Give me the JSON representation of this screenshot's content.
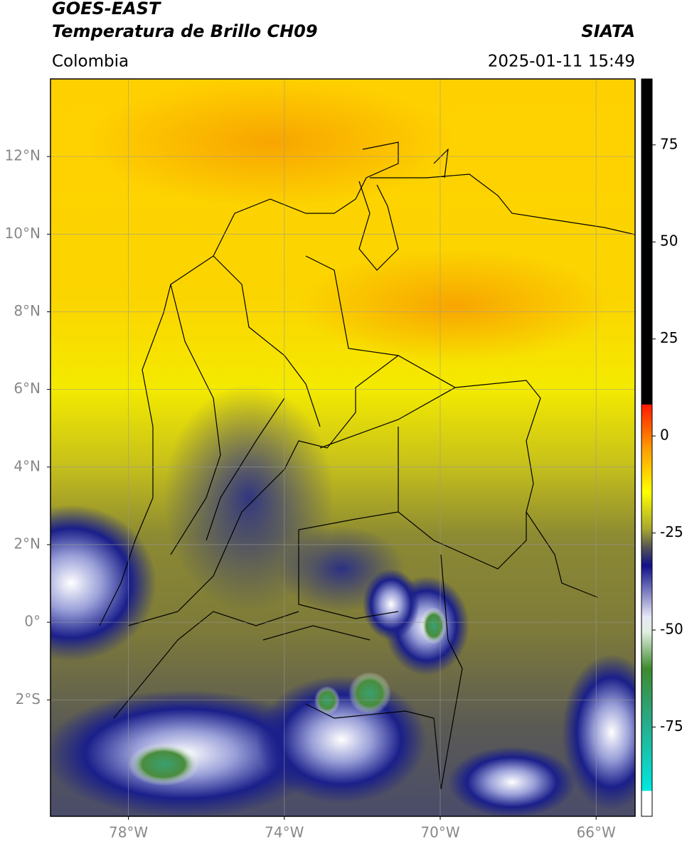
{
  "header": {
    "title": "GOES-EAST",
    "subtitle": "Temperatura de Brillo CH09",
    "source": "SIATA",
    "region": "Colombia",
    "datetime": "2025-01-11 15:49"
  },
  "map": {
    "lonlim": [
      -80,
      -65
    ],
    "latlim": [
      -5,
      14
    ],
    "lonticks": [
      {
        "value": -78,
        "label": "78°W"
      },
      {
        "value": -74,
        "label": "74°W"
      },
      {
        "value": -70,
        "label": "70°W"
      },
      {
        "value": -66,
        "label": "66°W"
      }
    ],
    "latticks": [
      {
        "value": 12,
        "label": "12°N"
      },
      {
        "value": 10,
        "label": "10°N"
      },
      {
        "value": 8,
        "label": "8°N"
      },
      {
        "value": 6,
        "label": "6°N"
      },
      {
        "value": 4,
        "label": "4°N"
      },
      {
        "value": 2,
        "label": "2°N"
      },
      {
        "value": 0,
        "label": "0°"
      },
      {
        "value": -2,
        "label": "2°S"
      }
    ],
    "grid": true
  },
  "colorbar": {
    "lim": [
      -98,
      92
    ],
    "ticks": [
      75,
      50,
      25,
      0,
      -25,
      -50,
      -75
    ]
  }
}
